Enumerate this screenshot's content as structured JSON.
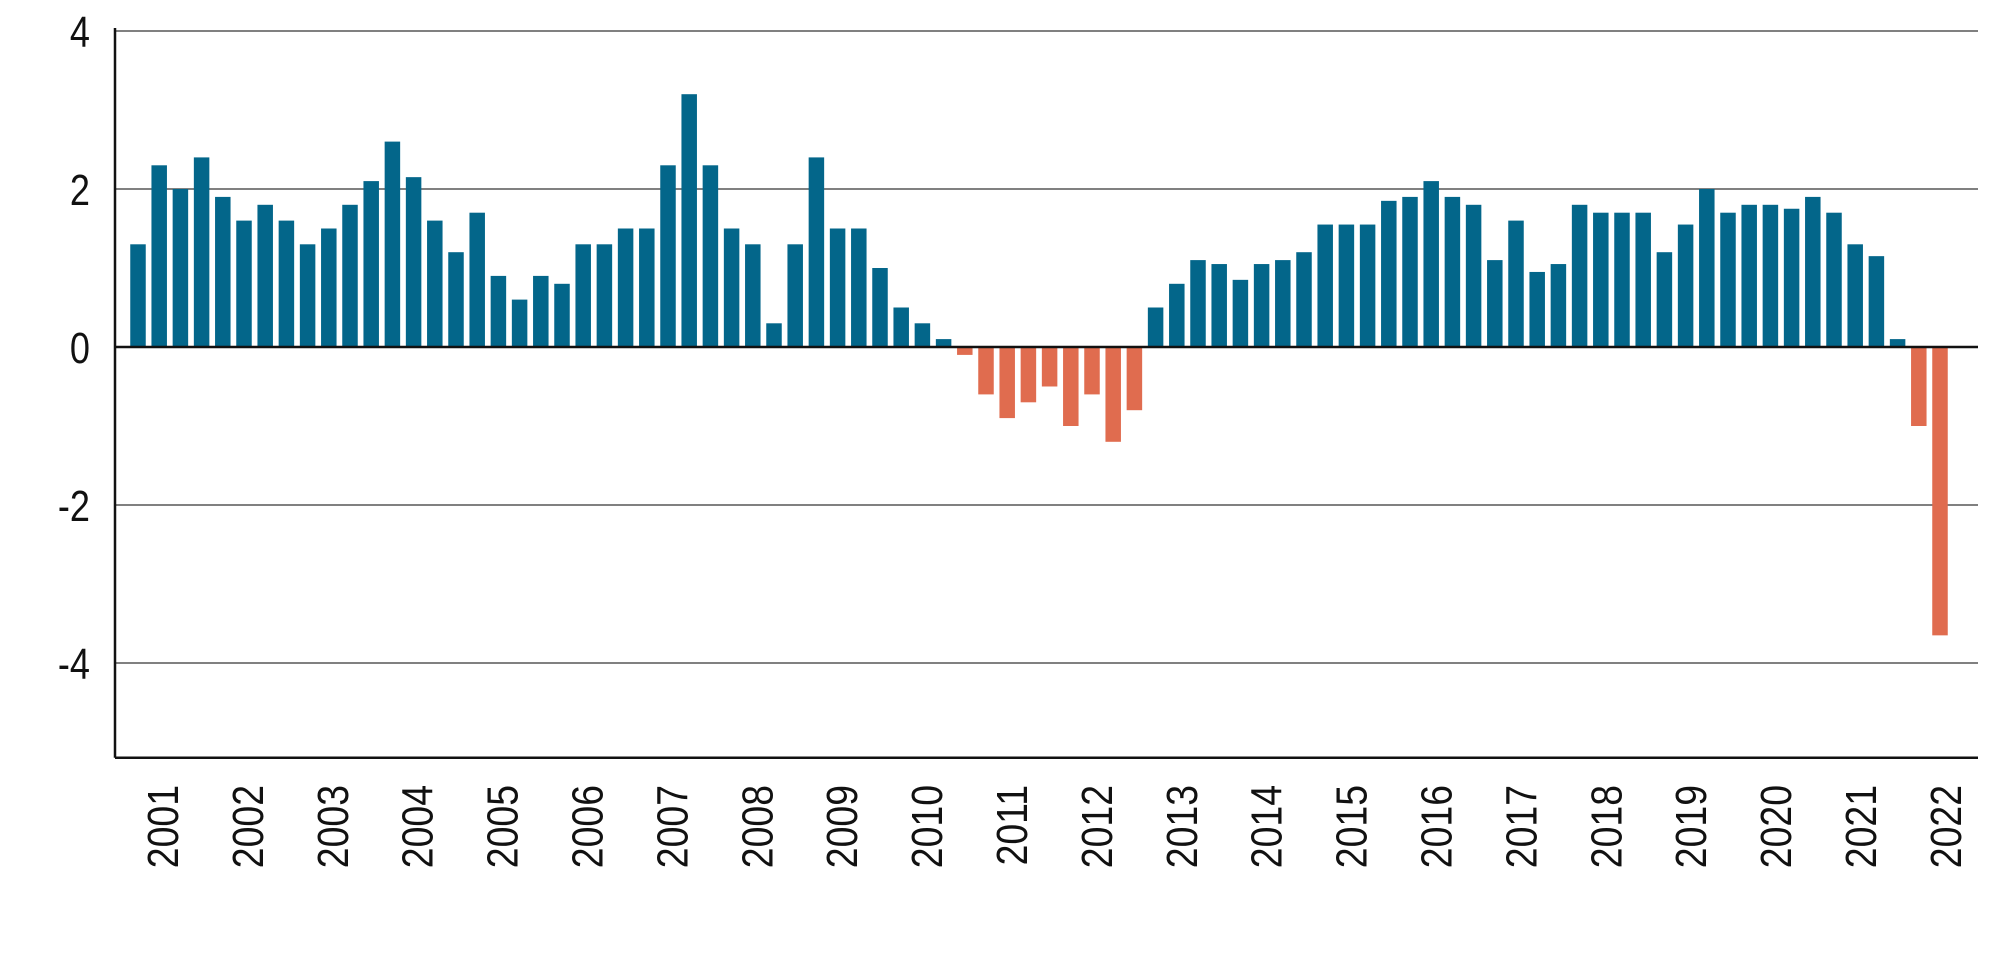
{
  "chart_data": {
    "type": "bar",
    "title": "",
    "xlabel": "",
    "ylabel": "",
    "ylim": [
      -5.2,
      4
    ],
    "yticks": [
      4,
      2,
      0,
      -2,
      -4
    ],
    "ytick_labels": [
      "4",
      "2",
      "0",
      "-2",
      "-4"
    ],
    "xtick_labels": [
      "2001",
      "2002",
      "2003",
      "2004",
      "2005",
      "2006",
      "2007",
      "2008",
      "2009",
      "2010",
      "2011",
      "2012",
      "2013",
      "2014",
      "2015",
      "2016",
      "2017",
      "2018",
      "2019",
      "2020",
      "2021",
      "2022"
    ],
    "grid": true,
    "colors": {
      "positive": "#03668a",
      "negative": "#e06c4f",
      "grid": "#808080",
      "axis": "#111111"
    },
    "values": [
      1.3,
      2.3,
      2.0,
      2.4,
      1.9,
      1.6,
      1.8,
      1.6,
      1.3,
      1.5,
      1.8,
      2.1,
      2.6,
      2.15,
      1.6,
      1.2,
      1.7,
      0.9,
      0.6,
      0.9,
      0.8,
      1.3,
      1.3,
      1.5,
      1.5,
      2.3,
      3.2,
      2.3,
      1.5,
      1.3,
      0.3,
      1.3,
      2.4,
      1.5,
      1.5,
      1.0,
      0.5,
      0.3,
      0.1,
      -0.1,
      -0.6,
      -0.9,
      -0.7,
      -0.5,
      -1.0,
      -0.6,
      -1.2,
      -0.8,
      0.5,
      0.8,
      1.1,
      1.05,
      0.85,
      1.05,
      1.1,
      1.2,
      1.55,
      1.55,
      1.55,
      1.85,
      1.9,
      2.1,
      1.9,
      1.8,
      1.1,
      1.6,
      0.95,
      1.05,
      1.8,
      1.7,
      1.7,
      1.7,
      1.2,
      1.55,
      2.0,
      1.7,
      1.8,
      1.8,
      1.75,
      1.9,
      1.7,
      1.3,
      1.15,
      0.1,
      -1.0,
      -3.65
    ]
  }
}
